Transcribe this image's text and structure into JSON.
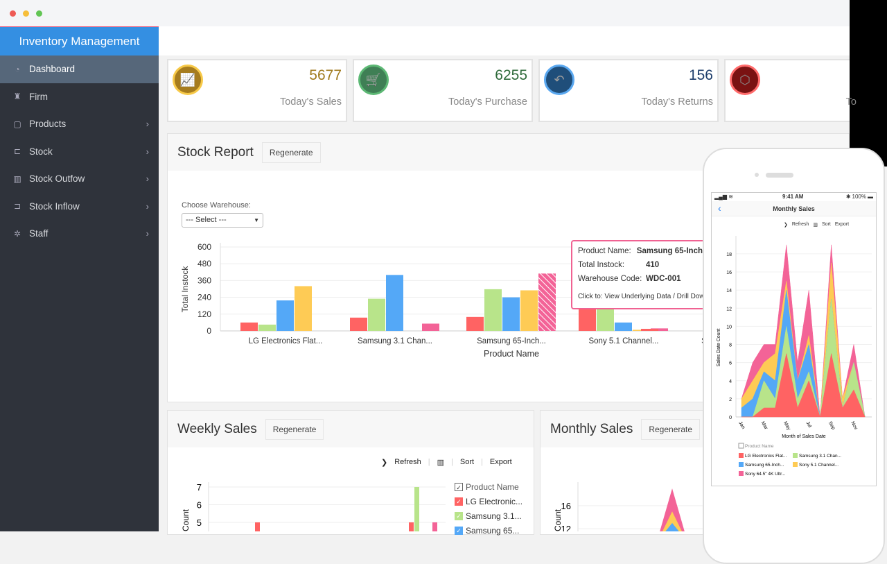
{
  "window": {
    "traffic_lights": [
      "#ee5b55",
      "#f6be3a",
      "#62c554"
    ]
  },
  "sidebar": {
    "brand": "Inventory Management",
    "items": [
      {
        "label": "Dashboard",
        "icon": "dashboard-icon",
        "glyph": "◔",
        "active": true,
        "chevron": false
      },
      {
        "label": "Firm",
        "icon": "building-icon",
        "glyph": "♜",
        "chevron": false
      },
      {
        "label": "Products",
        "icon": "box-icon",
        "glyph": "▢",
        "chevron": true
      },
      {
        "label": "Stock",
        "icon": "cart-icon",
        "glyph": "⊏",
        "chevron": true
      },
      {
        "label": "Stock Outfow",
        "icon": "chart-icon",
        "glyph": "▥",
        "chevron": true
      },
      {
        "label": "Stock Inflow",
        "icon": "cart-icon",
        "glyph": "⊐",
        "chevron": true
      },
      {
        "label": "Staff",
        "icon": "gear-icon",
        "glyph": "✲",
        "chevron": true
      }
    ]
  },
  "cards": [
    {
      "value": "5677",
      "label": "Today's Sales",
      "icon": "sales-chart-icon",
      "glyph": "📈",
      "color": "#a67c1e",
      "ring": "#f7c948",
      "valueColor": "#a07a1c"
    },
    {
      "value": "6255",
      "label": "Today's Purchase",
      "icon": "cart-icon",
      "glyph": "🛒",
      "color": "#3f7f55",
      "ring": "#5cb874",
      "valueColor": "#2f6b3b"
    },
    {
      "value": "156",
      "label": "Today's Returns",
      "icon": "reply-icon",
      "glyph": "↶",
      "color": "#1f4e7a",
      "ring": "#5aa8f0",
      "valueColor": "#1d3d6b"
    },
    {
      "value": "",
      "label": "To",
      "icon": "cube-icon",
      "glyph": "⬡",
      "color": "#7a1212",
      "ring": "#ff6b6b",
      "valueColor": "#7a1212"
    }
  ],
  "stock_report": {
    "title": "Stock Report",
    "regenerate": "Regenerate",
    "warehouse_label": "Choose Warehouse:",
    "warehouse_value": "--- Select ---"
  },
  "tooltip": {
    "product_key": "Product Name:",
    "product_val": "Samsung 65-Inch",
    "instock_key": "Total Instock:",
    "instock_val": "410",
    "wh_key": "Warehouse Code:",
    "wh_val": "WDC-001",
    "click": "Click to: View Underlying Data / Drill Down"
  },
  "weekly": {
    "title": "Weekly Sales",
    "regenerate": "Regenerate",
    "refresh": "Refresh",
    "sort": "Sort",
    "export": "Export",
    "legend_title": "Product Name",
    "legend": [
      "LG Electronic...",
      "Samsung 3.1...",
      "Samsung 65..."
    ],
    "ylabel": "Count"
  },
  "monthly": {
    "title": "Monthly Sales",
    "regenerate": "Regenerate",
    "ylabel": "Count"
  },
  "phone": {
    "time": "9:41 AM",
    "battery": "100%",
    "title": "Monthly Sales",
    "refresh": "Refresh",
    "sort": "Sort",
    "export": "Export",
    "legend_title": "Product Name"
  },
  "colors": {
    "red": "#ff6363",
    "green": "#b8e48a",
    "blue": "#54a8f7",
    "yellow": "#fecb55",
    "pink": "#f36397"
  },
  "chart_data": [
    {
      "type": "bar",
      "id": "stock",
      "xlabel": "Product Name",
      "ylabel": "Total Instock",
      "ylim": [
        0,
        600
      ],
      "yticks": [
        0,
        120,
        240,
        360,
        480,
        600
      ],
      "categories": [
        "LG Electronics Flat...",
        "Samsung 3.1 Chan...",
        "Samsung 65-Inch...",
        "Sony 5.1 Channel...",
        "S"
      ],
      "series": [
        {
          "values": [
            60,
            95,
            100,
            160,
            15
          ]
        },
        {
          "values": [
            45,
            230,
            298,
            160,
            0
          ]
        },
        {
          "values": [
            218,
            400,
            240,
            60,
            0
          ]
        },
        {
          "values": [
            320,
            0,
            290,
            8,
            0
          ]
        },
        {
          "values": [
            0,
            52,
            410,
            18,
            0
          ]
        }
      ],
      "highlight": {
        "series": 4,
        "category": 2
      }
    },
    {
      "type": "bar",
      "id": "weekly",
      "ylabel": "Count",
      "yticks": [
        5,
        6,
        7
      ],
      "legend": [
        "LG Electronic...",
        "Samsung 3.1...",
        "Samsung 65..."
      ],
      "bars": [
        {
          "series": 0,
          "value": 5
        },
        {
          "series": 0,
          "value": 5
        },
        {
          "series": 1,
          "value": 7
        },
        {
          "series": 4,
          "value": 5
        }
      ]
    },
    {
      "type": "area",
      "id": "monthly-main",
      "ylabel": "Count",
      "yticks": [
        12,
        16
      ],
      "peak": 19
    },
    {
      "type": "area",
      "id": "phone",
      "stacked": true,
      "title": "Monthly Sales",
      "xlabel": "Month of Sales Date",
      "ylabel": "Sales Date Count",
      "ylim": [
        0,
        19.5
      ],
      "yticks": [
        0,
        2,
        4,
        6,
        8,
        10,
        12,
        14,
        16,
        18
      ],
      "x": [
        "Jan",
        "Feb",
        "Mar",
        "Apr",
        "May",
        "Jun",
        "Jul",
        "Aug",
        "Sep",
        "Oct",
        "Nov",
        "Dec"
      ],
      "xticklabels": [
        "Jan",
        "Mar",
        "May",
        "Jul",
        "Sep",
        "Nov"
      ],
      "series": [
        {
          "name": "LG Electronics Flat...",
          "values": [
            0,
            0,
            1,
            1,
            7,
            1,
            4,
            0,
            7,
            1,
            3,
            0
          ]
        },
        {
          "name": "Samsung 3.1 Chan...",
          "values": [
            0,
            0,
            3,
            1,
            3,
            1,
            1,
            0,
            6,
            0,
            3,
            0
          ]
        },
        {
          "name": "Samsung 65-Inch...",
          "values": [
            1,
            2,
            1,
            2,
            4,
            2,
            3,
            0,
            0,
            0,
            0,
            0
          ]
        },
        {
          "name": "Sony 5.1 Channel...",
          "values": [
            1,
            2,
            1,
            3,
            1,
            0,
            1,
            0,
            4,
            1,
            0,
            0
          ]
        },
        {
          "name": "Sony 64.5\" 4K Ultr...",
          "values": [
            0,
            2,
            2,
            1,
            4,
            2,
            5,
            0,
            2,
            0,
            2,
            0
          ]
        }
      ]
    }
  ]
}
